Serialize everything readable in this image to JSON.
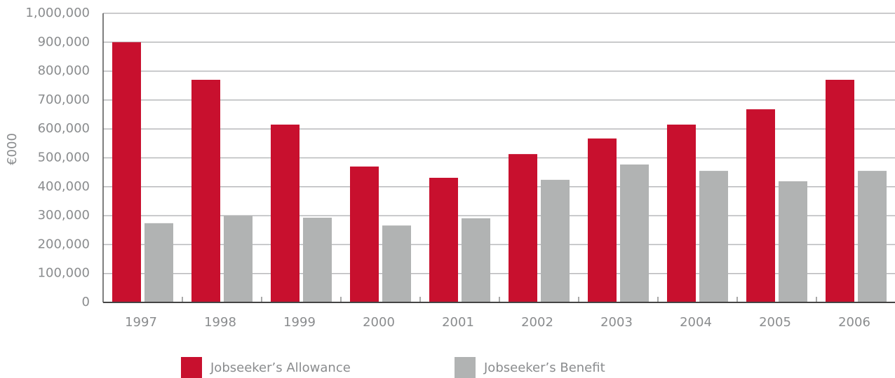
{
  "chart_data": {
    "type": "bar",
    "ylabel": "€000",
    "categories": [
      "1997",
      "1998",
      "1999",
      "2000",
      "2001",
      "2002",
      "2003",
      "2004",
      "2005",
      "2006"
    ],
    "series": [
      {
        "name": "Jobseeker’s Allowance",
        "color": "#c8102e",
        "values": [
          900000,
          770000,
          615000,
          470000,
          431000,
          513000,
          567000,
          615000,
          668000,
          770000
        ]
      },
      {
        "name": "Jobseeker’s Benefit",
        "color": "#b1b3b3",
        "values": [
          274000,
          300000,
          293000,
          266000,
          291000,
          424000,
          477000,
          455000,
          419000,
          455000
        ]
      }
    ],
    "ylim": [
      0,
      1000000
    ],
    "yticks": [
      0,
      {
        "value": 100000,
        "label": "100,000"
      },
      {
        "value": 200000,
        "label": "200,000"
      },
      {
        "value": 300000,
        "label": "300,000"
      },
      {
        "value": 400000,
        "label": "400,000"
      },
      {
        "value": 500000,
        "label": "500,000"
      },
      {
        "value": 600000,
        "label": "600,000"
      },
      {
        "value": 700000,
        "label": "700,000"
      },
      {
        "value": 800000,
        "label": "800,000"
      },
      {
        "value": 900000,
        "label": "900,000"
      },
      {
        "value": 1000000,
        "label": "1,000,000"
      }
    ],
    "grid": true,
    "legend": "bottom"
  }
}
